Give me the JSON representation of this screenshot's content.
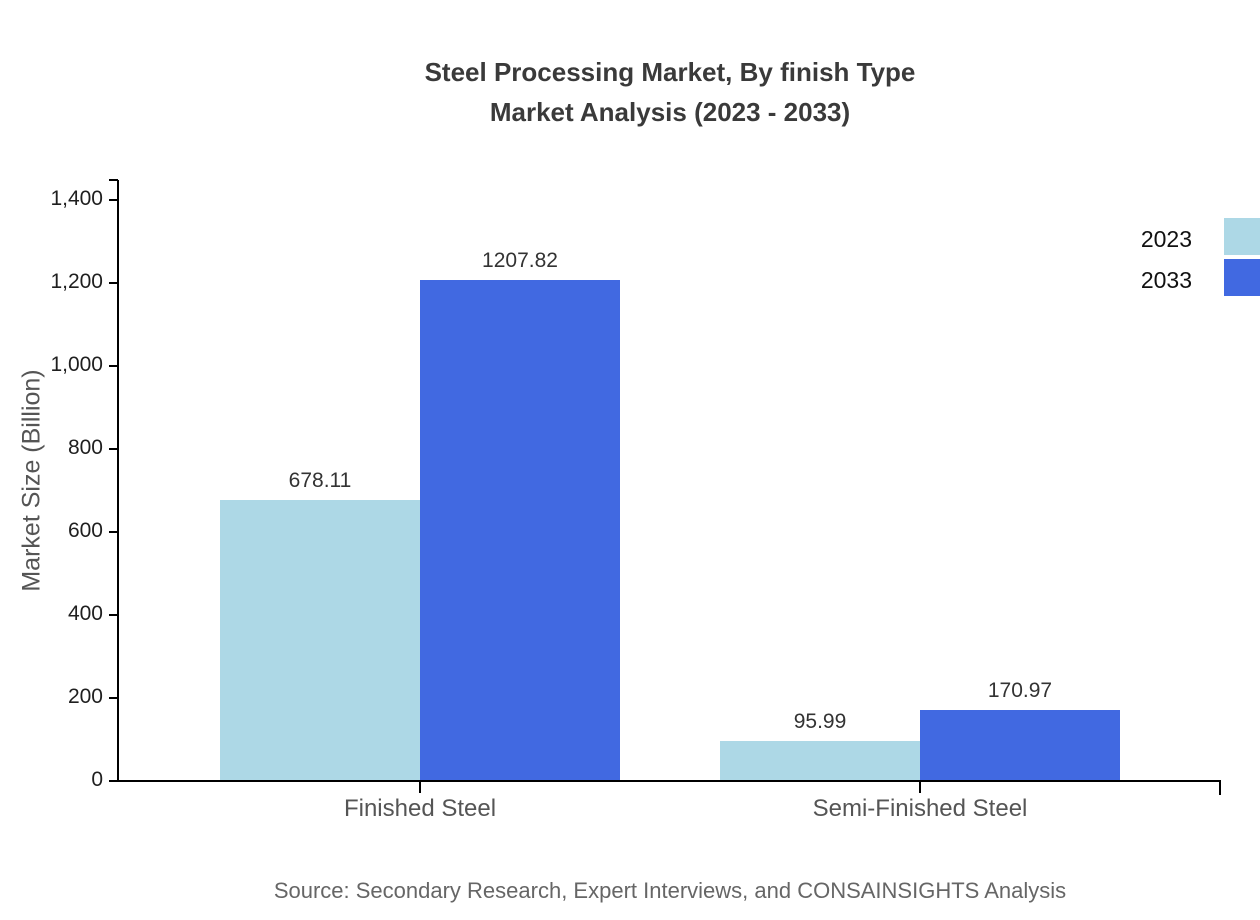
{
  "title": {
    "line1": "Steel Processing Market, By finish Type",
    "line2": "Market Analysis (2023 - 2033)"
  },
  "source": "Source: Secondary Research, Expert Interviews, and CONSAINSIGHTS Analysis",
  "chart_data": {
    "type": "bar",
    "categories": [
      "Finished Steel",
      "Semi-Finished Steel"
    ],
    "series": [
      {
        "name": "2023",
        "color": "#ADD8E6",
        "values": [
          678.11,
          95.99
        ]
      },
      {
        "name": "2033",
        "color": "#4169E1",
        "values": [
          1207.82,
          170.97
        ]
      }
    ],
    "title": "Steel Processing Market, By finish Type Market Analysis (2023 - 2033)",
    "xlabel": "",
    "ylabel": "Market Size (Billion)",
    "ylim": [
      0,
      1448
    ],
    "yticks": [
      0,
      200,
      400,
      600,
      800,
      1000,
      1200,
      1400
    ],
    "ytick_labels": [
      "0",
      "200",
      "400",
      "600",
      "800",
      "1,000",
      "1,200",
      "1,400"
    ],
    "grid": false,
    "legend_position": "top-right",
    "axis_color": "#000000"
  }
}
